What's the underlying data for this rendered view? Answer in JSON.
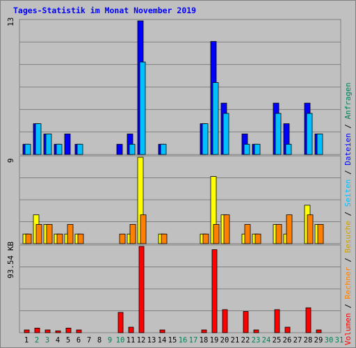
{
  "chart_data": {
    "type": "bar",
    "title": "Tages-Statistik im Monat November 2019",
    "days": [
      "1",
      "2",
      "3",
      "4",
      "5",
      "6",
      "7",
      "8",
      "9",
      "10",
      "11",
      "12",
      "13",
      "14",
      "15",
      "16",
      "17",
      "18",
      "19",
      "20",
      "21",
      "22",
      "23",
      "24",
      "25",
      "26",
      "27",
      "28",
      "29",
      "30",
      "31"
    ],
    "weekend_days": [
      "2",
      "3",
      "9",
      "10",
      "16",
      "17",
      "23",
      "24",
      "30",
      "31"
    ],
    "requests_panel": {
      "ymax_label": "13",
      "ymax": 13,
      "series": [
        {
          "name": "Anfragen",
          "color": "#00805c",
          "values": [
            1,
            3,
            2,
            1,
            2,
            1,
            0,
            0,
            0,
            1,
            2,
            13,
            0,
            1,
            0,
            0,
            0,
            3,
            11,
            5,
            0,
            2,
            1,
            0,
            5,
            3,
            0,
            5,
            2,
            0,
            0
          ]
        },
        {
          "name": "Dateien",
          "color": "#0000ff",
          "values": [
            1,
            3,
            2,
            1,
            2,
            1,
            0,
            0,
            0,
            1,
            2,
            13,
            0,
            1,
            0,
            0,
            0,
            3,
            11,
            5,
            0,
            2,
            1,
            0,
            5,
            3,
            0,
            5,
            2,
            0,
            0
          ]
        },
        {
          "name": "Seiten",
          "color": "#00c0ff",
          "values": [
            1,
            3,
            2,
            1,
            0,
            1,
            0,
            0,
            0,
            0,
            1,
            9,
            0,
            1,
            0,
            0,
            0,
            3,
            7,
            4,
            0,
            1,
            1,
            0,
            4,
            1,
            0,
            4,
            2,
            0,
            0
          ]
        }
      ]
    },
    "visits_panel": {
      "ymax_label": "9",
      "ymax": 9,
      "series": [
        {
          "name": "Besuche",
          "color": "#ffff00",
          "values": [
            1,
            3,
            2,
            1,
            1,
            1,
            0,
            0,
            0,
            0,
            1,
            9,
            0,
            1,
            0,
            0,
            0,
            1,
            7,
            3,
            0,
            1,
            1,
            0,
            2,
            1,
            0,
            4,
            2,
            0,
            0
          ]
        },
        {
          "name": "Rechner",
          "color": "#ff8000",
          "values": [
            1,
            2,
            2,
            1,
            2,
            1,
            0,
            0,
            0,
            1,
            2,
            3,
            0,
            1,
            0,
            0,
            0,
            1,
            2,
            3,
            0,
            2,
            1,
            0,
            2,
            3,
            0,
            3,
            2,
            0,
            0
          ]
        }
      ]
    },
    "volume_panel": {
      "ymax_label": "93.54 KB",
      "ymax": 93.54,
      "series": [
        {
          "name": "Volumen",
          "color": "#ff0000",
          "values": [
            3,
            5,
            3,
            2,
            5,
            3,
            0,
            0,
            0,
            22,
            6,
            93.54,
            0,
            3,
            0,
            0,
            0,
            3,
            90,
            25,
            0,
            23,
            3,
            0,
            25,
            6,
            0,
            27,
            3,
            0,
            0
          ]
        }
      ]
    }
  }
}
